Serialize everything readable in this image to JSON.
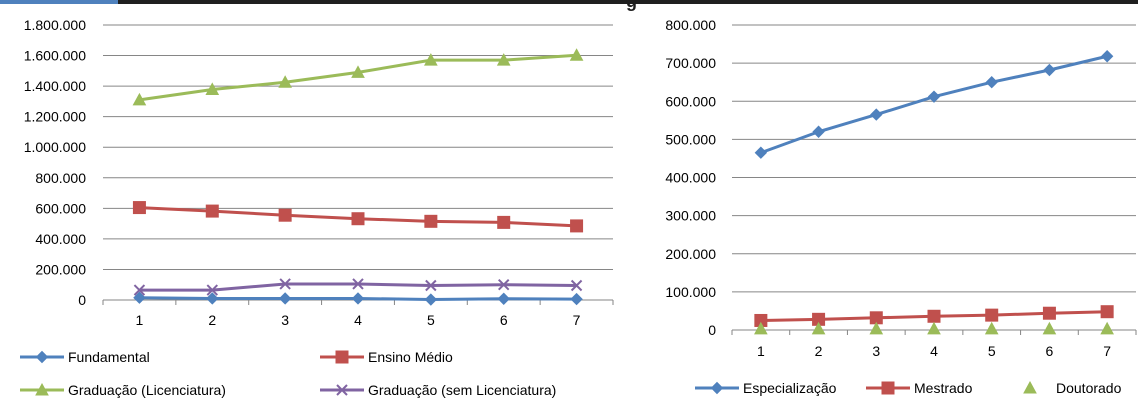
{
  "title_fragment": "g",
  "chart_data": [
    {
      "type": "line",
      "categories": [
        "1",
        "2",
        "3",
        "4",
        "5",
        "6",
        "7"
      ],
      "ylim": [
        0,
        1800000
      ],
      "ytick_labels": [
        "0",
        "200.000",
        "400.000",
        "600.000",
        "800.000",
        "1.000.000",
        "1.200.000",
        "1.400.000",
        "1.600.000",
        "1.800.000"
      ],
      "grid": true,
      "legend_position": "bottom",
      "series": [
        {
          "name": "Fundamental",
          "color": "#4f81bd",
          "marker": "diamond",
          "values": [
            15000,
            10000,
            10000,
            10000,
            3000,
            8000,
            6000
          ]
        },
        {
          "name": "Ensino Médio",
          "color": "#c0504d",
          "marker": "square",
          "values": [
            605000,
            582000,
            555000,
            532000,
            515000,
            508000,
            485000
          ]
        },
        {
          "name": "Graduação (Licenciatura)",
          "color": "#9bbb59",
          "marker": "triangle",
          "values": [
            1310000,
            1378000,
            1425000,
            1490000,
            1570000,
            1570000,
            1602000
          ]
        },
        {
          "name": "Graduação (sem Licenciatura)",
          "color": "#8064a2",
          "marker": "x",
          "values": [
            65000,
            65000,
            105000,
            105000,
            95000,
            100000,
            95000
          ]
        }
      ]
    },
    {
      "type": "line",
      "categories": [
        "1",
        "2",
        "3",
        "4",
        "5",
        "6",
        "7"
      ],
      "ylim": [
        0,
        800000
      ],
      "ytick_labels": [
        "0",
        "100.000",
        "200.000",
        "300.000",
        "400.000",
        "500.000",
        "600.000",
        "700.000",
        "800.000"
      ],
      "grid": true,
      "legend_position": "bottom",
      "series": [
        {
          "name": "Especialização",
          "color": "#4f81bd",
          "marker": "diamond",
          "values": [
            465000,
            520000,
            565000,
            612000,
            650000,
            682000,
            718000
          ]
        },
        {
          "name": "Mestrado",
          "color": "#c0504d",
          "marker": "square",
          "values": [
            25000,
            28000,
            32000,
            36000,
            39000,
            44000,
            48000
          ]
        },
        {
          "name": "Doutorado",
          "color": "#9bbb59",
          "marker": "triangle-only",
          "values": [
            3000,
            3000,
            3000,
            3000,
            3000,
            3000,
            3000
          ]
        }
      ]
    }
  ]
}
